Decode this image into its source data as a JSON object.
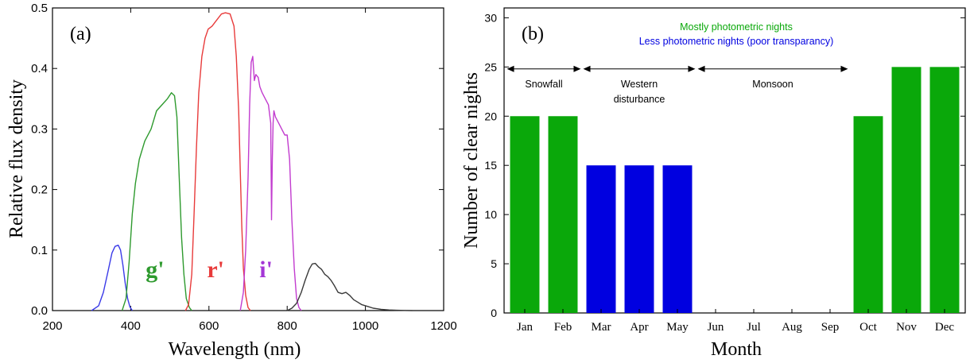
{
  "chart_data": [
    {
      "type": "line",
      "panel_label": "(a)",
      "xlabel": "Wavelength (nm)",
      "ylabel": "Relative flux density",
      "xlim": [
        200,
        1200
      ],
      "ylim": [
        0,
        0.5
      ],
      "xticks": [
        200,
        400,
        600,
        800,
        1000,
        1200
      ],
      "yticks": [
        "0.0",
        "0.1",
        "0.2",
        "0.3",
        "0.4",
        "0.5"
      ],
      "grid": false,
      "series": [
        {
          "color": "#3a3ae8",
          "x": [
            300,
            318,
            330,
            342,
            352,
            360,
            368,
            374,
            380,
            386,
            392,
            398,
            404
          ],
          "y": [
            0.0,
            0.008,
            0.03,
            0.065,
            0.095,
            0.106,
            0.108,
            0.1,
            0.075,
            0.045,
            0.02,
            0.006,
            0.0
          ]
        },
        {
          "name": "g'",
          "color": "#2e9a2e",
          "x": [
            378,
            388,
            396,
            404,
            412,
            422,
            436,
            452,
            466,
            480,
            494,
            504,
            512,
            518,
            524,
            530,
            536,
            542,
            550,
            556
          ],
          "y": [
            0.0,
            0.02,
            0.08,
            0.16,
            0.21,
            0.25,
            0.28,
            0.3,
            0.33,
            0.34,
            0.35,
            0.36,
            0.355,
            0.32,
            0.22,
            0.12,
            0.06,
            0.02,
            0.005,
            0.0
          ]
        },
        {
          "name": "r'",
          "color": "#e83b3b",
          "x": [
            540,
            548,
            556,
            562,
            568,
            574,
            582,
            590,
            598,
            608,
            620,
            632,
            642,
            654,
            664,
            670,
            676,
            680,
            684,
            688,
            694,
            700,
            706
          ],
          "y": [
            0.0,
            0.01,
            0.06,
            0.16,
            0.27,
            0.36,
            0.42,
            0.45,
            0.465,
            0.47,
            0.48,
            0.49,
            0.492,
            0.49,
            0.47,
            0.42,
            0.33,
            0.23,
            0.14,
            0.07,
            0.025,
            0.005,
            0.0
          ]
        },
        {
          "name": "i'",
          "color": "#c23ccf",
          "x": [
            680,
            688,
            694,
            700,
            704,
            708,
            712,
            716,
            720,
            726,
            730,
            736,
            744,
            752,
            758,
            760,
            762,
            764,
            766,
            770,
            778,
            786,
            794,
            800,
            806,
            812,
            818,
            824,
            830,
            836
          ],
          "y": [
            0.0,
            0.03,
            0.1,
            0.22,
            0.34,
            0.41,
            0.42,
            0.38,
            0.39,
            0.385,
            0.37,
            0.36,
            0.35,
            0.34,
            0.31,
            0.15,
            0.25,
            0.31,
            0.33,
            0.32,
            0.31,
            0.3,
            0.29,
            0.29,
            0.25,
            0.15,
            0.07,
            0.02,
            0.005,
            0.0
          ]
        },
        {
          "color": "#3a3a3a",
          "x": [
            800,
            812,
            824,
            836,
            846,
            856,
            864,
            872,
            880,
            888,
            896,
            904,
            912,
            920,
            930,
            940,
            950,
            960,
            970,
            980,
            990,
            1000,
            1010,
            1020,
            1030,
            1040,
            1060,
            1080,
            1100,
            1120
          ],
          "y": [
            0.0,
            0.004,
            0.012,
            0.03,
            0.05,
            0.068,
            0.077,
            0.078,
            0.072,
            0.068,
            0.06,
            0.056,
            0.05,
            0.042,
            0.03,
            0.028,
            0.03,
            0.025,
            0.018,
            0.014,
            0.01,
            0.008,
            0.006,
            0.004,
            0.003,
            0.002,
            0.001,
            0.0005,
            0.0002,
            0.0
          ]
        }
      ],
      "annotations": [
        {
          "text": "g'",
          "color": "#2e9a2e",
          "x": 462,
          "y": 0.055
        },
        {
          "text": "r'",
          "color": "#e83b3b",
          "x": 617,
          "y": 0.055
        },
        {
          "text": "i'",
          "color": "#a436d6",
          "x": 746,
          "y": 0.055
        }
      ]
    },
    {
      "type": "bar",
      "panel_label": "(b)",
      "xlabel": "Month",
      "ylabel": "Number of clear nights",
      "ylim": [
        0,
        31
      ],
      "yticks": [
        0,
        5,
        10,
        15,
        20,
        25,
        30
      ],
      "grid": false,
      "categories": [
        "Jan",
        "Feb",
        "Mar",
        "Apr",
        "May",
        "Jun",
        "Jul",
        "Aug",
        "Sep",
        "Oct",
        "Nov",
        "Dec"
      ],
      "values": [
        20,
        20,
        15,
        15,
        15,
        0,
        0,
        0,
        0,
        20,
        25,
        25
      ],
      "bar_colors": [
        "#0aa80a",
        "#0aa80a",
        "#0000e0",
        "#0000e0",
        "#0000e0",
        "#0aa80a",
        "#0aa80a",
        "#0aa80a",
        "#0aa80a",
        "#0aa80a",
        "#0aa80a",
        "#0aa80a"
      ],
      "legend": [
        {
          "text": "Mostly photometric nights",
          "color": "#0aa80a"
        },
        {
          "text": "Less photometric nights (poor transparancy)",
          "color": "#0000e0"
        }
      ],
      "seasons": [
        {
          "label": [
            "Snowfall"
          ],
          "from": "Jan",
          "to": "Feb"
        },
        {
          "label": [
            "Western",
            "disturbance"
          ],
          "from": "Mar",
          "to": "May"
        },
        {
          "label": [
            "Monsoon"
          ],
          "from": "Jun",
          "to": "Sep"
        }
      ]
    }
  ]
}
